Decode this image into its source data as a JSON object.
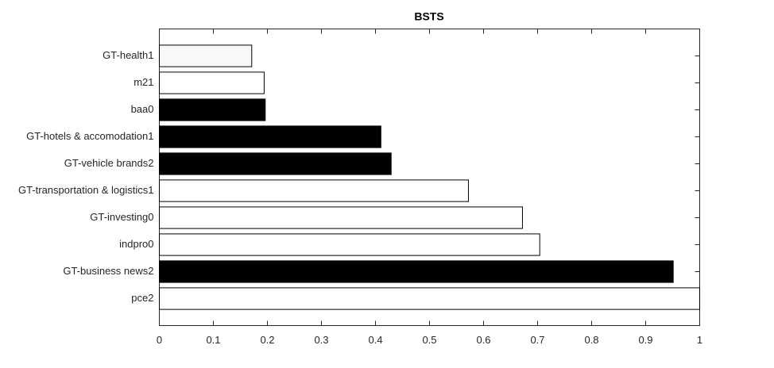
{
  "chart_data": {
    "type": "barh",
    "title": "BSTS",
    "categories": [
      "GT-health1",
      "m21",
      "baa0",
      "GT-hotels & accomodation1",
      "GT-vehicle brands2",
      "GT-transportation & logistics1",
      "GT-investing0",
      "indpro0",
      "GT-business news2",
      "pce2"
    ],
    "values": [
      0.171,
      0.194,
      0.196,
      0.41,
      0.429,
      0.572,
      0.672,
      0.704,
      0.951,
      1.0
    ],
    "colors": [
      "#f8f8f8",
      "#ffffff",
      "#000000",
      "#000000",
      "#000000",
      "#ffffff",
      "#ffffff",
      "#ffffff",
      "#000000",
      "#ffffff"
    ],
    "xlim": [
      0,
      1
    ],
    "xticks": [
      0,
      0.1,
      0.2,
      0.3,
      0.4,
      0.5,
      0.6,
      0.7,
      0.8,
      0.9,
      1
    ]
  }
}
